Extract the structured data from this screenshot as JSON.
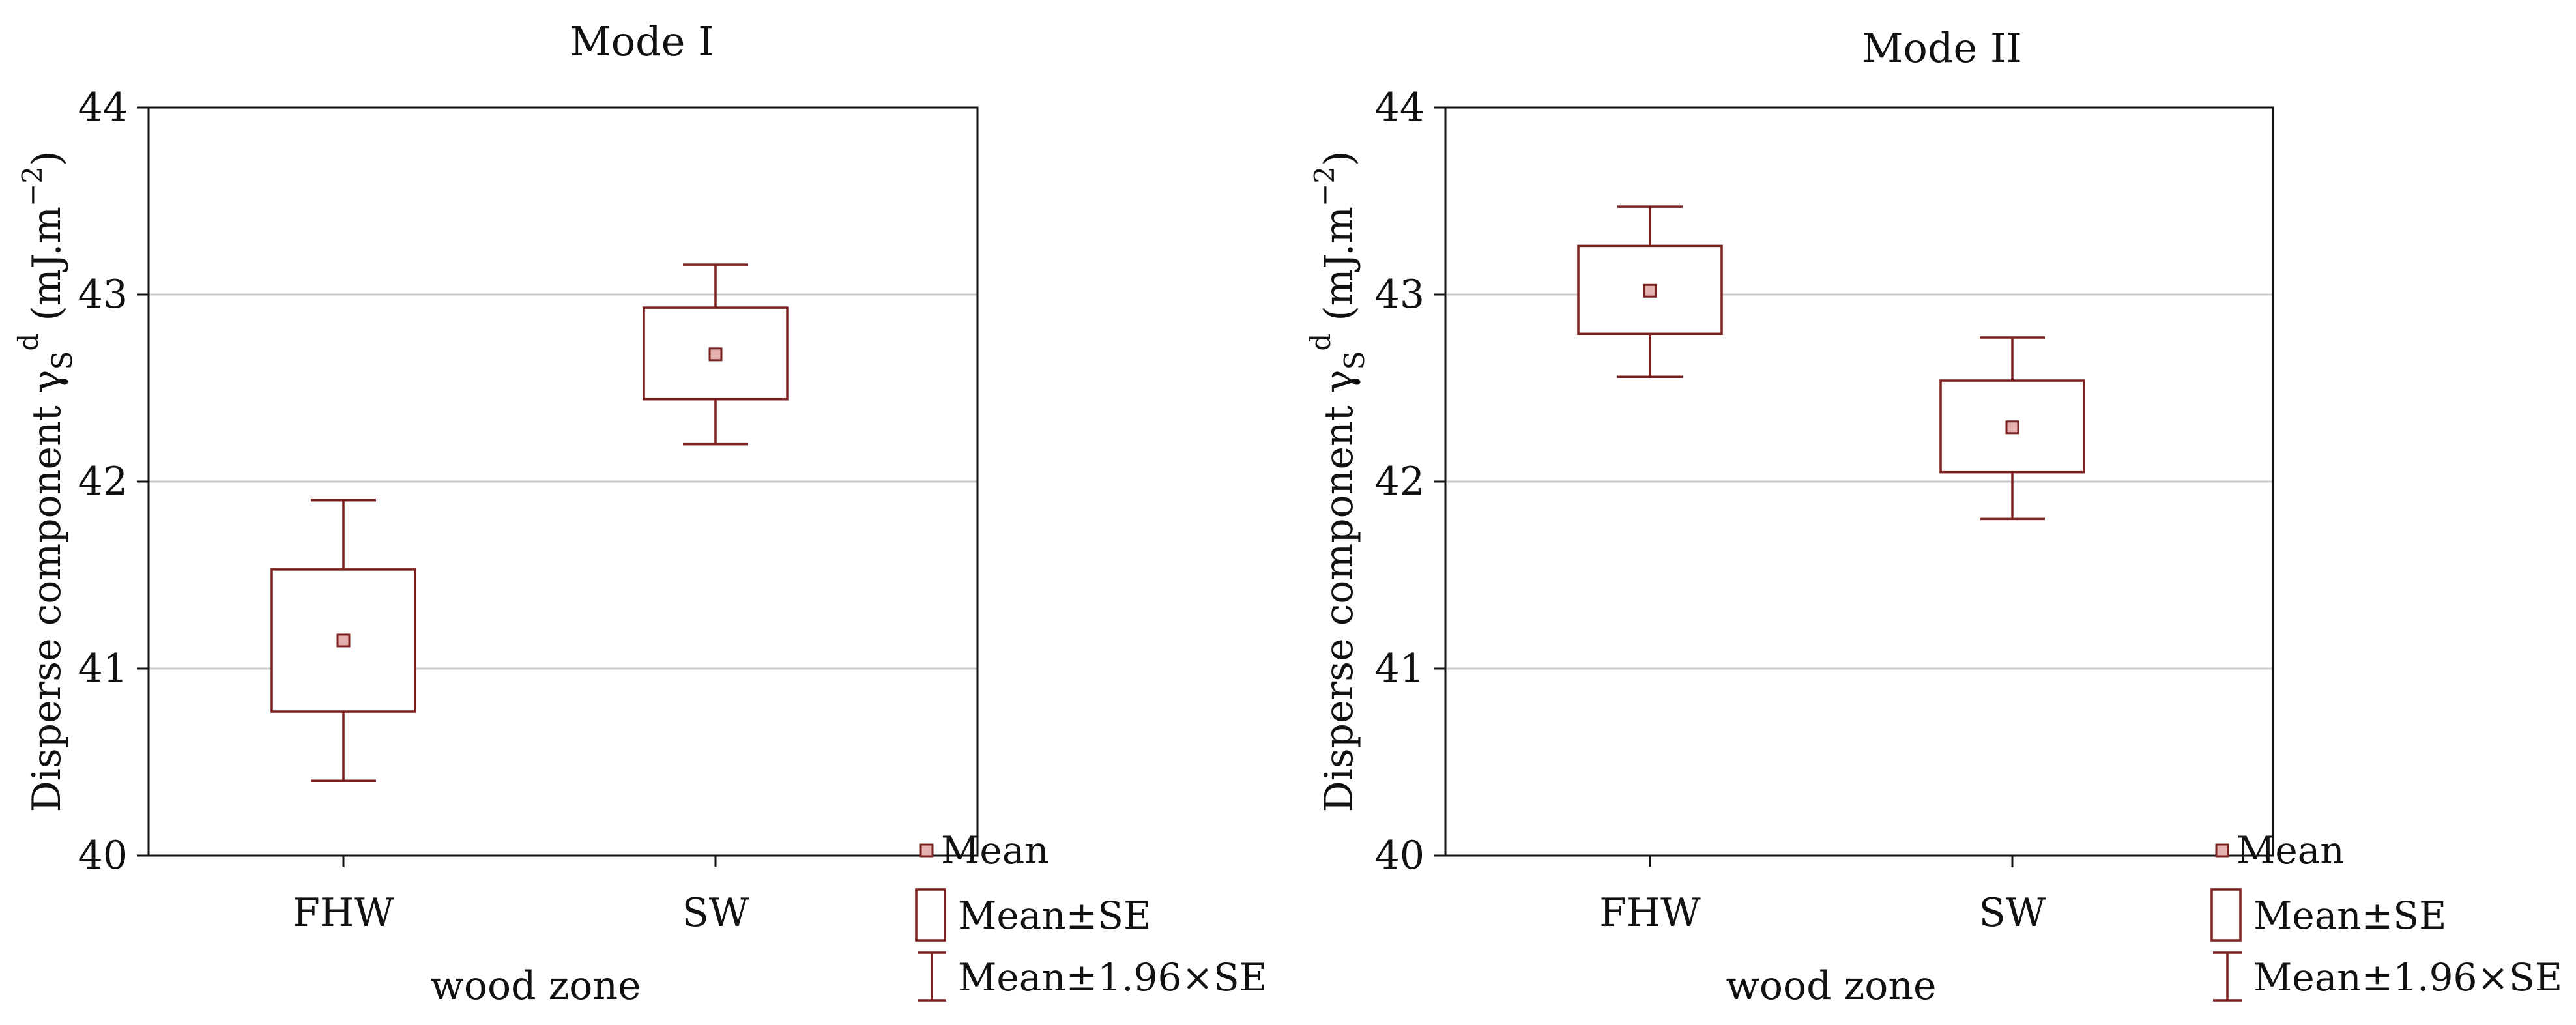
{
  "colors": {
    "box": "#7b1f1f",
    "mean_fill": "#e5b0b0",
    "grid": "#c8c8c8",
    "frame": "#111111"
  },
  "legend": {
    "mean_label": "Mean",
    "se_label": "Mean±SE",
    "ci_label": "Mean±1.96×SE"
  },
  "chart_data": [
    {
      "type": "box",
      "title": "Mode I",
      "xlabel": "wood zone",
      "ylabel_main": "Disperse component γ",
      "ylabel_sub": "S",
      "ylabel_sup": "d",
      "ylabel_unit": "(mJ.m",
      "ylabel_unit_sup": "−2",
      "ylabel_close": ")",
      "ylim": [
        40,
        44
      ],
      "yticks": [
        40,
        41,
        42,
        43,
        44
      ],
      "grid": true,
      "categories": [
        "FHW",
        "SW"
      ],
      "series": [
        {
          "category": "FHW",
          "mean": 41.15,
          "se_low": 40.77,
          "se_high": 41.53,
          "ci_low": 40.4,
          "ci_high": 41.9
        },
        {
          "category": "SW",
          "mean": 42.68,
          "se_low": 42.44,
          "se_high": 42.93,
          "ci_low": 42.2,
          "ci_high": 43.16
        }
      ]
    },
    {
      "type": "box",
      "title": "Mode II",
      "xlabel": "wood zone",
      "ylabel_main": "Disperse component γ",
      "ylabel_sub": "S",
      "ylabel_sup": "d",
      "ylabel_unit": "(mJ.m",
      "ylabel_unit_sup": "−2",
      "ylabel_close": ")",
      "ylim": [
        40,
        44
      ],
      "yticks": [
        40,
        41,
        42,
        43,
        44
      ],
      "grid": true,
      "categories": [
        "FHW",
        "SW"
      ],
      "series": [
        {
          "category": "FHW",
          "mean": 43.02,
          "se_low": 42.79,
          "se_high": 43.26,
          "ci_low": 42.56,
          "ci_high": 43.47
        },
        {
          "category": "SW",
          "mean": 42.29,
          "se_low": 42.05,
          "se_high": 42.54,
          "ci_low": 41.8,
          "ci_high": 42.77
        }
      ]
    }
  ]
}
